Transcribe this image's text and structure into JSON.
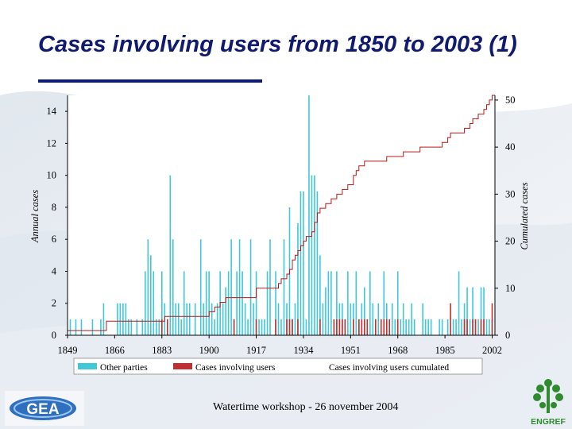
{
  "slide": {
    "title": "Cases involving users from 1850 to 2003 (1)",
    "footer": "Watertime workshop - 26 november 2004",
    "logo_left": "GEA",
    "logo_right": "ENGREF"
  },
  "colors": {
    "other": "#40c8d8",
    "users": "#c03030",
    "cumulated": "#b81818",
    "title": "#101a6e"
  },
  "chart_data": {
    "type": "bar",
    "title": "",
    "xlabel": "",
    "ylabel_left": "Annual cases",
    "ylabel_right": "Cumulated cases",
    "xlim": [
      1849,
      2003
    ],
    "ylim_left": [
      0,
      15
    ],
    "ylim_right": [
      0,
      51
    ],
    "x_ticks": [
      1849,
      1866,
      1883,
      1900,
      1917,
      1934,
      1951,
      1968,
      1985,
      2002
    ],
    "y_left_ticks": [
      0,
      2,
      4,
      6,
      8,
      10,
      12,
      14
    ],
    "y_right_ticks": [
      0,
      10,
      20,
      30,
      40,
      50
    ],
    "grid": false,
    "legend_position": "bottom",
    "series": [
      {
        "name": "Other parties",
        "kind": "bar",
        "points": [
          [
            1850,
            1
          ],
          [
            1852,
            1
          ],
          [
            1854,
            1
          ],
          [
            1858,
            1
          ],
          [
            1861,
            1
          ],
          [
            1862,
            2
          ],
          [
            1867,
            2
          ],
          [
            1868,
            2
          ],
          [
            1869,
            2
          ],
          [
            1870,
            2
          ],
          [
            1871,
            1
          ],
          [
            1872,
            1
          ],
          [
            1874,
            1
          ],
          [
            1876,
            1
          ],
          [
            1877,
            4
          ],
          [
            1878,
            6
          ],
          [
            1879,
            5
          ],
          [
            1880,
            4
          ],
          [
            1881,
            1
          ],
          [
            1882,
            1
          ],
          [
            1883,
            4
          ],
          [
            1884,
            2
          ],
          [
            1885,
            1
          ],
          [
            1886,
            10
          ],
          [
            1887,
            6
          ],
          [
            1888,
            2
          ],
          [
            1889,
            2
          ],
          [
            1890,
            1
          ],
          [
            1891,
            4
          ],
          [
            1892,
            2
          ],
          [
            1893,
            2
          ],
          [
            1895,
            2
          ],
          [
            1897,
            6
          ],
          [
            1898,
            2
          ],
          [
            1899,
            4
          ],
          [
            1900,
            4
          ],
          [
            1901,
            2
          ],
          [
            1902,
            1
          ],
          [
            1903,
            2
          ],
          [
            1904,
            4
          ],
          [
            1905,
            2
          ],
          [
            1906,
            3
          ],
          [
            1907,
            4
          ],
          [
            1908,
            6
          ],
          [
            1909,
            1
          ],
          [
            1910,
            4
          ],
          [
            1911,
            6
          ],
          [
            1912,
            4
          ],
          [
            1913,
            2
          ],
          [
            1914,
            1
          ],
          [
            1915,
            6
          ],
          [
            1916,
            2
          ],
          [
            1917,
            4
          ],
          [
            1918,
            1
          ],
          [
            1919,
            1
          ],
          [
            1920,
            1
          ],
          [
            1921,
            4
          ],
          [
            1922,
            6
          ],
          [
            1924,
            4
          ],
          [
            1925,
            2
          ],
          [
            1926,
            1
          ],
          [
            1927,
            6
          ],
          [
            1928,
            2
          ],
          [
            1929,
            8
          ],
          [
            1930,
            1
          ],
          [
            1931,
            2
          ],
          [
            1932,
            7
          ],
          [
            1933,
            9
          ],
          [
            1934,
            9
          ],
          [
            1935,
            1
          ],
          [
            1936,
            15
          ],
          [
            1937,
            10
          ],
          [
            1938,
            10
          ],
          [
            1939,
            9
          ],
          [
            1940,
            5
          ],
          [
            1941,
            2
          ],
          [
            1942,
            3
          ],
          [
            1943,
            4
          ],
          [
            1944,
            4
          ],
          [
            1946,
            4
          ],
          [
            1947,
            2
          ],
          [
            1948,
            2
          ],
          [
            1949,
            1
          ],
          [
            1950,
            4
          ],
          [
            1951,
            2
          ],
          [
            1952,
            2
          ],
          [
            1953,
            4
          ],
          [
            1954,
            1
          ],
          [
            1955,
            2
          ],
          [
            1956,
            3
          ],
          [
            1957,
            1
          ],
          [
            1958,
            4
          ],
          [
            1959,
            2
          ],
          [
            1960,
            1
          ],
          [
            1961,
            2
          ],
          [
            1963,
            4
          ],
          [
            1964,
            2
          ],
          [
            1965,
            1
          ],
          [
            1966,
            2
          ],
          [
            1967,
            1
          ],
          [
            1968,
            4
          ],
          [
            1969,
            1
          ],
          [
            1970,
            2
          ],
          [
            1971,
            1
          ],
          [
            1972,
            1
          ],
          [
            1973,
            2
          ],
          [
            1974,
            1
          ],
          [
            1977,
            2
          ],
          [
            1978,
            1
          ],
          [
            1979,
            1
          ],
          [
            1980,
            1
          ],
          [
            1983,
            1
          ],
          [
            1984,
            1
          ],
          [
            1986,
            1
          ],
          [
            1988,
            1
          ],
          [
            1989,
            1
          ],
          [
            1990,
            4
          ],
          [
            1991,
            1
          ],
          [
            1992,
            2
          ],
          [
            1993,
            3
          ],
          [
            1994,
            1
          ],
          [
            1995,
            3
          ],
          [
            1996,
            1
          ],
          [
            1997,
            1
          ],
          [
            1998,
            3
          ],
          [
            1999,
            3
          ],
          [
            2000,
            1
          ],
          [
            2001,
            1
          ],
          [
            2002,
            1
          ]
        ]
      },
      {
        "name": "Cases involving users",
        "kind": "bar",
        "points": [
          [
            1883,
            1
          ],
          [
            1885,
            1
          ],
          [
            1909,
            1
          ],
          [
            1917,
            1
          ],
          [
            1924,
            1
          ],
          [
            1928,
            1
          ],
          [
            1929,
            1
          ],
          [
            1930,
            1
          ],
          [
            1932,
            1
          ],
          [
            1940,
            1
          ],
          [
            1945,
            1
          ],
          [
            1946,
            1
          ],
          [
            1947,
            1
          ],
          [
            1948,
            1
          ],
          [
            1949,
            1
          ],
          [
            1952,
            1
          ],
          [
            1954,
            1
          ],
          [
            1955,
            1
          ],
          [
            1956,
            1
          ],
          [
            1957,
            1
          ],
          [
            1960,
            1
          ],
          [
            1962,
            1
          ],
          [
            1963,
            1
          ],
          [
            1964,
            1
          ],
          [
            1965,
            1
          ],
          [
            1968,
            1
          ],
          [
            1987,
            2
          ],
          [
            1992,
            1
          ],
          [
            1993,
            1
          ],
          [
            1995,
            1
          ],
          [
            1996,
            1
          ],
          [
            1998,
            1
          ],
          [
            1999,
            1
          ],
          [
            2002,
            2
          ]
        ]
      },
      {
        "name": "Cases involving users cumulated",
        "kind": "line",
        "points": [
          [
            1849,
            1
          ],
          [
            1862,
            1
          ],
          [
            1863,
            3
          ],
          [
            1883,
            3
          ],
          [
            1884,
            4
          ],
          [
            1899,
            4
          ],
          [
            1900,
            5
          ],
          [
            1902,
            6
          ],
          [
            1904,
            7
          ],
          [
            1906,
            8
          ],
          [
            1916,
            8
          ],
          [
            1917,
            10
          ],
          [
            1924,
            10
          ],
          [
            1925,
            11
          ],
          [
            1926,
            12
          ],
          [
            1928,
            13
          ],
          [
            1929,
            14
          ],
          [
            1930,
            16
          ],
          [
            1931,
            17
          ],
          [
            1932,
            18
          ],
          [
            1933,
            19
          ],
          [
            1934,
            20
          ],
          [
            1935,
            21
          ],
          [
            1937,
            22
          ],
          [
            1938,
            24
          ],
          [
            1939,
            26
          ],
          [
            1940,
            27
          ],
          [
            1942,
            28
          ],
          [
            1944,
            29
          ],
          [
            1946,
            30
          ],
          [
            1948,
            31
          ],
          [
            1950,
            32
          ],
          [
            1952,
            34
          ],
          [
            1953,
            35
          ],
          [
            1954,
            36
          ],
          [
            1956,
            37
          ],
          [
            1963,
            37
          ],
          [
            1964,
            38
          ],
          [
            1969,
            38
          ],
          [
            1970,
            39
          ],
          [
            1975,
            39
          ],
          [
            1976,
            40
          ],
          [
            1983,
            40
          ],
          [
            1984,
            41
          ],
          [
            1986,
            42
          ],
          [
            1987,
            43
          ],
          [
            1991,
            43
          ],
          [
            1992,
            44
          ],
          [
            1994,
            45
          ],
          [
            1995,
            46
          ],
          [
            1997,
            47
          ],
          [
            1999,
            48
          ],
          [
            2000,
            49
          ],
          [
            2001,
            50
          ],
          [
            2002,
            51
          ],
          [
            2003,
            51
          ]
        ]
      }
    ],
    "legend": [
      "Other parties",
      "Cases involving users",
      "Cases involving users cumulated"
    ]
  }
}
